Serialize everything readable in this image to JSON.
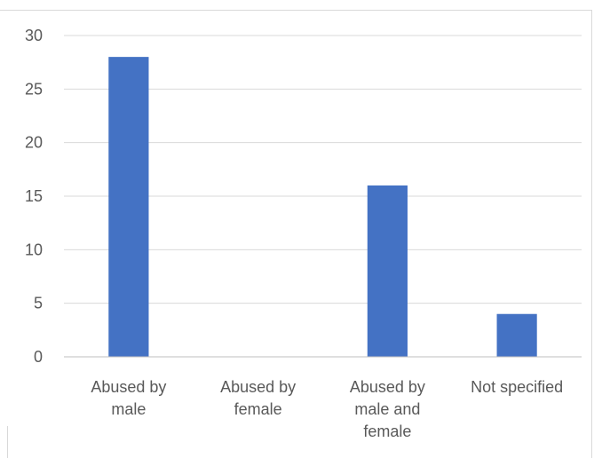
{
  "chart_data": {
    "type": "bar",
    "categories": [
      [
        "Abused by",
        "male"
      ],
      [
        "Abused by",
        "female"
      ],
      [
        "Abused by",
        "male and",
        "female"
      ],
      [
        "Not specified"
      ]
    ],
    "values": [
      28,
      0,
      16,
      4
    ],
    "ylim": [
      0,
      30
    ],
    "yticks": [
      0,
      5,
      10,
      15,
      20,
      25,
      30
    ],
    "grid": true,
    "legend": "none",
    "colors": {
      "bar": "#4472C4",
      "grid": "#d9d9d9",
      "axis": "#bfbfbf",
      "text": "#595959"
    }
  }
}
